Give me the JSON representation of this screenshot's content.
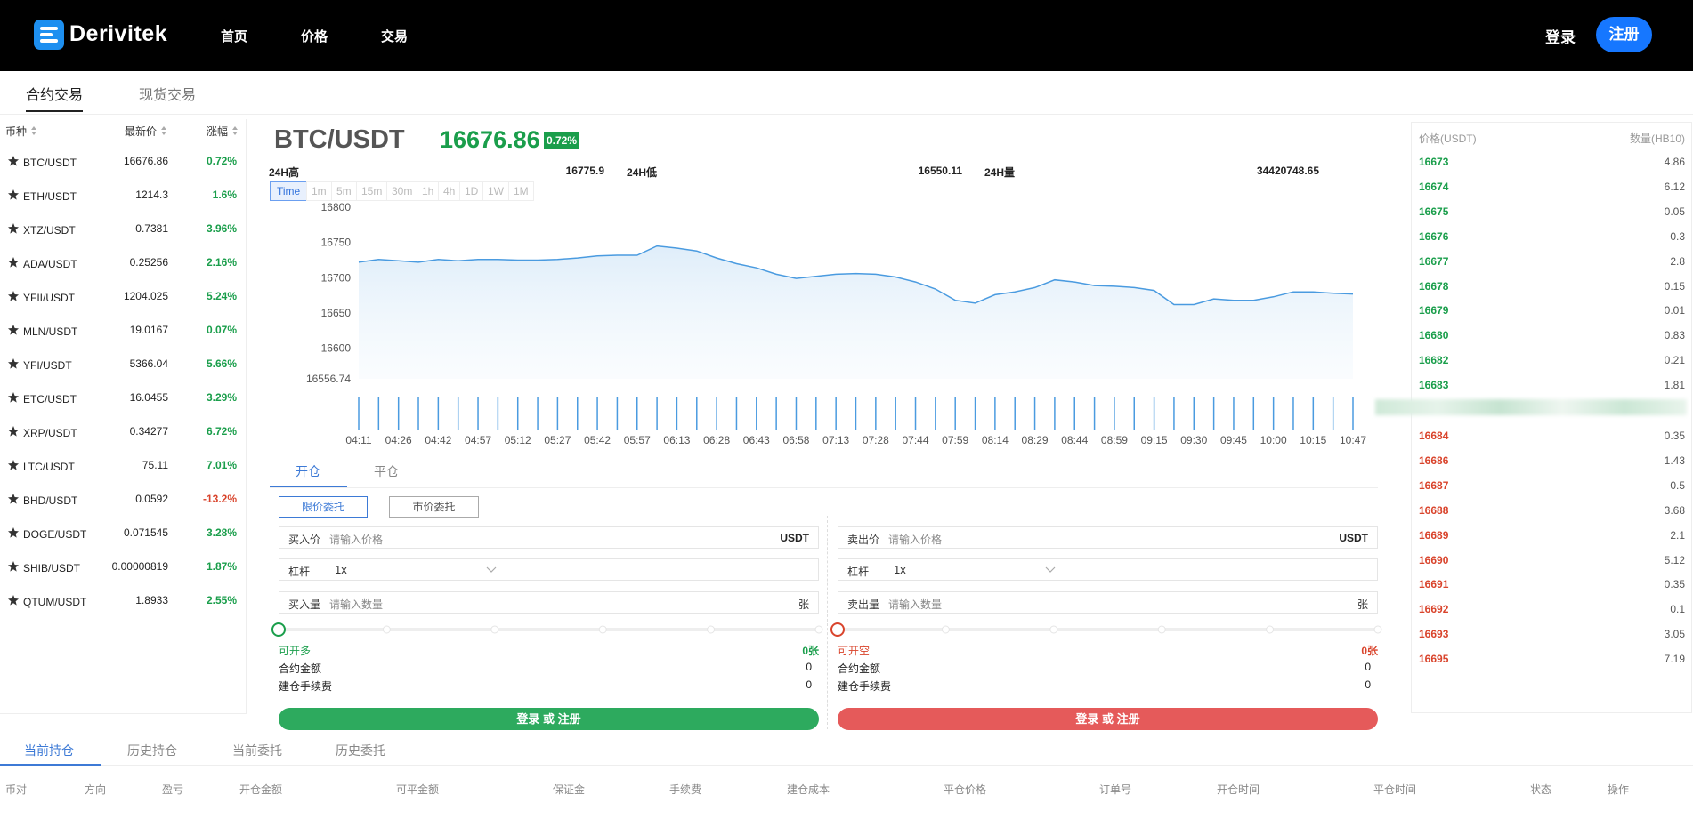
{
  "header": {
    "brand": "Derivitek",
    "nav": [
      "首页",
      "价格",
      "交易"
    ],
    "login": "登录",
    "register": "注册"
  },
  "tabs": [
    "合约交易",
    "现货交易"
  ],
  "market_list": {
    "columns": [
      "币种",
      "最新价",
      "涨幅"
    ],
    "rows": [
      [
        "BTC/USDT",
        "16676.86",
        "0.72%"
      ],
      [
        "ETH/USDT",
        "1214.3",
        "1.6%"
      ],
      [
        "XTZ/USDT",
        "0.7381",
        "3.96%"
      ],
      [
        "ADA/USDT",
        "0.25256",
        "2.16%"
      ],
      [
        "YFII/USDT",
        "1204.025",
        "5.24%"
      ],
      [
        "MLN/USDT",
        "19.0167",
        "0.07%"
      ],
      [
        "YFI/USDT",
        "5366.04",
        "5.66%"
      ],
      [
        "ETC/USDT",
        "16.0455",
        "3.29%"
      ],
      [
        "XRP/USDT",
        "0.34277",
        "6.72%"
      ],
      [
        "LTC/USDT",
        "75.11",
        "7.01%"
      ],
      [
        "BHD/USDT",
        "0.0592",
        "-13.2%"
      ],
      [
        "DOGE/USDT",
        "0.071545",
        "3.28%"
      ],
      [
        "SHIB/USDT",
        "0.00000819",
        "1.87%"
      ],
      [
        "QTUM/USDT",
        "1.8933",
        "2.55%"
      ]
    ]
  },
  "ticker": {
    "pair": "BTC/USDT",
    "price": "16676.86",
    "change": "0.72%",
    "stats": [
      {
        "label": "24H高",
        "value": "16775.9"
      },
      {
        "label": "24H低",
        "value": "16550.11"
      },
      {
        "label": "24H量",
        "value": "34420748.65"
      }
    ],
    "intervals": [
      "Time",
      "1m",
      "5m",
      "15m",
      "30m",
      "1h",
      "4h",
      "1D",
      "1W",
      "1M"
    ]
  },
  "chart_data": {
    "type": "line",
    "categories": [
      "04:11",
      null,
      "04:26",
      null,
      "04:42",
      null,
      "04:57",
      null,
      "05:12",
      null,
      "05:27",
      null,
      "05:42",
      null,
      "05:57",
      null,
      "06:13",
      null,
      "06:28",
      null,
      "06:43",
      null,
      "06:58",
      null,
      "07:13",
      null,
      "07:28",
      null,
      "07:44",
      null,
      "07:59",
      null,
      "08:14",
      null,
      "08:29",
      null,
      "08:44",
      null,
      "08:59",
      null,
      "09:15",
      null,
      "09:30",
      null,
      "09:45",
      null,
      "10:00",
      null,
      "10:15",
      null,
      "10:47"
    ],
    "series": [
      {
        "color": "#4a9be0",
        "values": [
          16722,
          16726,
          16724,
          16722,
          16726,
          16724,
          16726,
          16726,
          16725,
          16725,
          16726,
          16728,
          16731,
          16732,
          16732,
          16745,
          16742,
          16738,
          16728,
          16720,
          16714,
          16705,
          16699,
          16702,
          16705,
          16706,
          16705,
          16701,
          16694,
          16684,
          16668,
          16664,
          16676,
          16680,
          16686,
          16697,
          16694,
          16689,
          16688,
          16686,
          16682,
          16662,
          16662,
          16670,
          16668,
          16668,
          16673,
          16680,
          16680,
          16678,
          16677
        ]
      }
    ],
    "volume": [
      1,
      1,
      1,
      1,
      1,
      1,
      1,
      1,
      1,
      1,
      1,
      1,
      1,
      1,
      1,
      1,
      1,
      1,
      1,
      1,
      1,
      1,
      1,
      1,
      1,
      1,
      1,
      1,
      1,
      1,
      1,
      1,
      1,
      1,
      1,
      1,
      1,
      1,
      1,
      1,
      1,
      1,
      1,
      1,
      1,
      1,
      1,
      1,
      1,
      1,
      1
    ],
    "volume_color": "#4a9be0",
    "ylim": [
      16556.74,
      16800
    ],
    "yticks": [
      16556.74,
      16600,
      16650,
      16700,
      16750,
      16800
    ]
  },
  "order_form": {
    "tabs": [
      "开仓",
      "平仓"
    ],
    "order_types": [
      "限价委托",
      "市价委托"
    ],
    "buy": {
      "price_label": "买入价",
      "price_placeholder": "请输入价格",
      "unit": "USDT",
      "leverage_label": "杠杆",
      "leverage": "1x",
      "amount_label": "买入量",
      "amount_placeholder": "请输入数量",
      "amount_unit": "张",
      "available_label": "可开多",
      "available": "0张",
      "contract_label": "合约金额",
      "contract": "0",
      "fee_label": "建仓手续费",
      "fee": "0",
      "button": "登录 或 注册"
    },
    "sell": {
      "price_label": "卖出价",
      "price_placeholder": "请输入价格",
      "unit": "USDT",
      "leverage_label": "杠杆",
      "leverage": "1x",
      "amount_label": "卖出量",
      "amount_placeholder": "请输入数量",
      "amount_unit": "张",
      "available_label": "可开空",
      "available": "0张",
      "contract_label": "合约金额",
      "contract": "0",
      "fee_label": "建仓手续费",
      "fee": "0",
      "button": "登录 或 注册"
    }
  },
  "order_book": {
    "columns": [
      "价格(USDT)",
      "数量(HB10)"
    ],
    "bids": [
      [
        "16673",
        "4.86"
      ],
      [
        "16674",
        "6.12"
      ],
      [
        "16675",
        "0.05"
      ],
      [
        "16676",
        "0.3"
      ],
      [
        "16677",
        "2.8"
      ],
      [
        "16678",
        "0.15"
      ],
      [
        "16679",
        "0.01"
      ],
      [
        "16680",
        "0.83"
      ],
      [
        "16682",
        "0.21"
      ],
      [
        "16683",
        "1.81"
      ]
    ],
    "asks": [
      [
        "16684",
        "0.35"
      ],
      [
        "16686",
        "1.43"
      ],
      [
        "16687",
        "0.5"
      ],
      [
        "16688",
        "3.68"
      ],
      [
        "16689",
        "2.1"
      ],
      [
        "16690",
        "5.12"
      ],
      [
        "16691",
        "0.35"
      ],
      [
        "16692",
        "0.1"
      ],
      [
        "16693",
        "3.05"
      ],
      [
        "16695",
        "7.19"
      ]
    ]
  },
  "positions": {
    "tabs": [
      "当前持仓",
      "历史持仓",
      "当前委托",
      "历史委托"
    ],
    "columns": [
      "币对",
      "方向",
      "盈亏",
      "开仓金额",
      "可平金额",
      "保证金",
      "手续费",
      "建仓成本",
      "平仓价格",
      "订单号",
      "开仓时间",
      "平仓时间",
      "状态",
      "操作"
    ]
  }
}
